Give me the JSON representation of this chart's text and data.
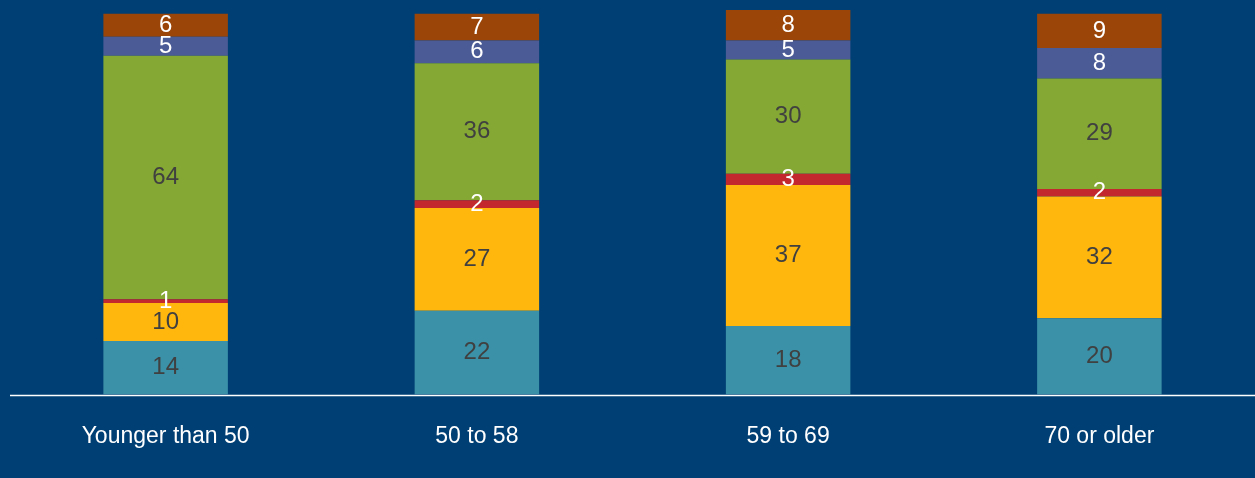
{
  "chart_data": {
    "type": "bar",
    "stacked": true,
    "data_labels": true,
    "legend": false,
    "grid": false,
    "tick_labels": "x",
    "ylim": [
      0,
      101
    ],
    "categories": [
      "Younger than 50",
      "50 to 58",
      "59 to 69",
      "70 or older"
    ],
    "series": [
      {
        "color": "#3a91a8",
        "values": [
          14,
          22,
          18,
          20
        ]
      },
      {
        "color": "#ffb60d",
        "values": [
          10,
          27,
          37,
          32
        ]
      },
      {
        "color": "#c3282e",
        "values": [
          1,
          2,
          3,
          2
        ]
      },
      {
        "color": "#84a833",
        "values": [
          64,
          36,
          30,
          29
        ]
      },
      {
        "color": "#4a5b96",
        "values": [
          5,
          6,
          5,
          8
        ]
      },
      {
        "color": "#9b4508",
        "values": [
          6,
          7,
          8,
          9
        ]
      }
    ]
  }
}
